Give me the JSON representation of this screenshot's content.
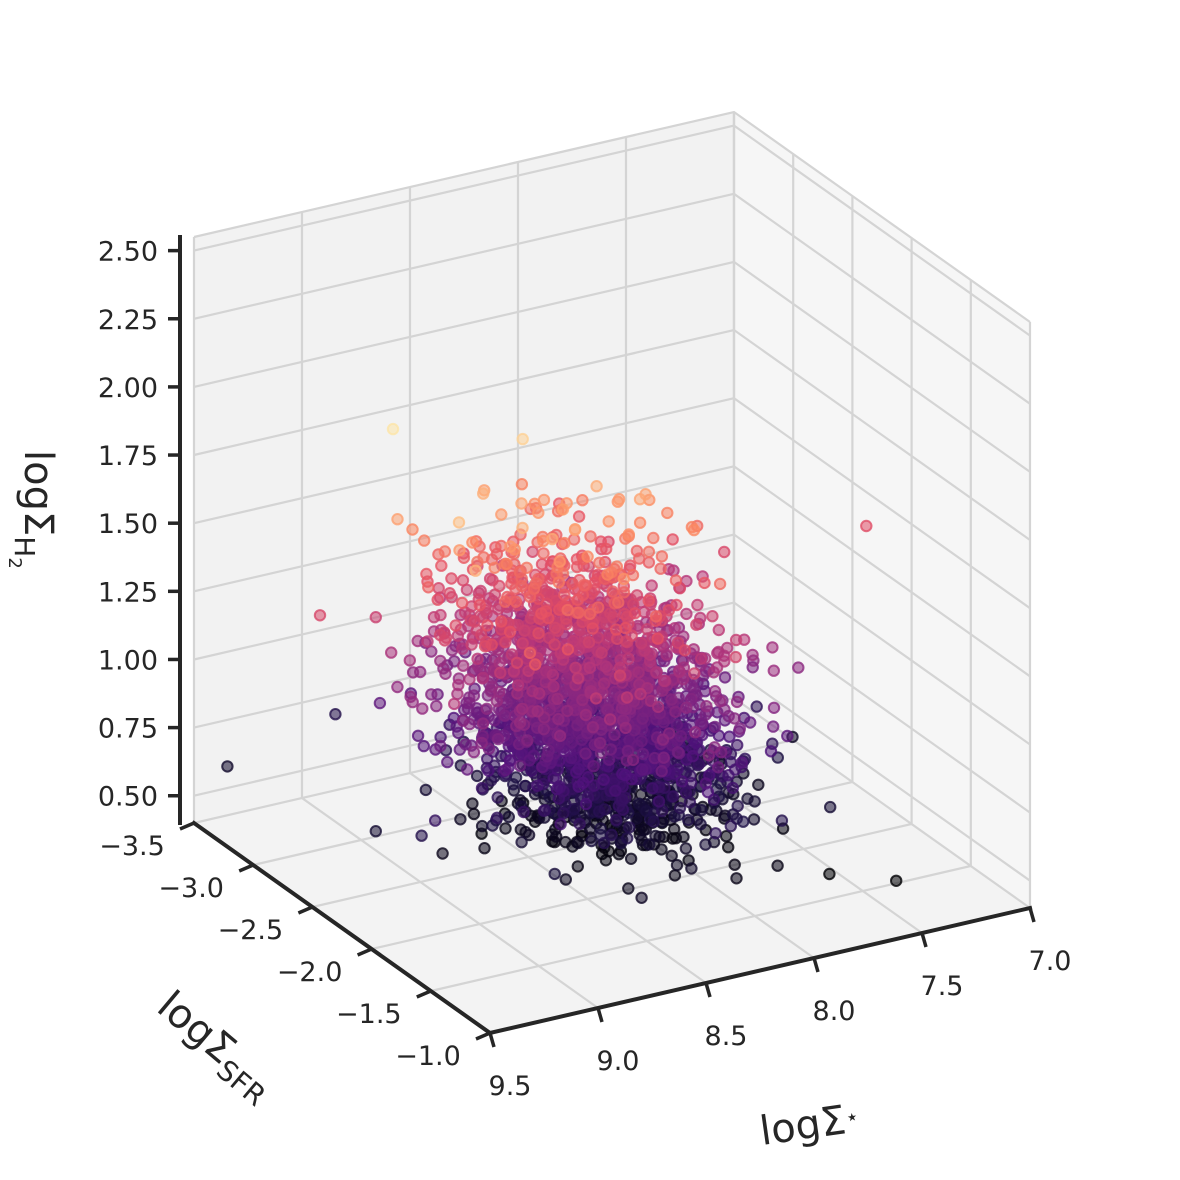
{
  "chart_data": {
    "type": "scatter",
    "projection": "3d",
    "axes": {
      "x": {
        "label": "logΣ",
        "label_sub": "⋆",
        "min": 7.0,
        "max": 9.5,
        "ticks": [
          "7.0",
          "7.5",
          "8.0",
          "8.5",
          "9.0",
          "9.5"
        ],
        "tick_values": [
          7.0,
          7.5,
          8.0,
          8.5,
          9.0,
          9.5
        ]
      },
      "y": {
        "label": "logΣ",
        "label_sub": "SFR",
        "min": -3.5,
        "max": -1.0,
        "ticks": [
          "−3.5",
          "−3.0",
          "−2.5",
          "−2.0",
          "−1.5",
          "−1.0"
        ],
        "tick_values": [
          -3.5,
          -3.0,
          -2.5,
          -2.0,
          -1.5,
          -1.0
        ]
      },
      "z": {
        "label": "logΣ",
        "label_sub": "H",
        "label_subsub": "2",
        "min": 0.4,
        "max": 2.55,
        "ticks": [
          "0.50",
          "0.75",
          "1.00",
          "1.25",
          "1.50",
          "1.75",
          "2.00",
          "2.25",
          "2.50"
        ],
        "tick_values": [
          0.5,
          0.75,
          1.0,
          1.25,
          1.5,
          1.75,
          2.0,
          2.25,
          2.5
        ]
      }
    },
    "grid": true,
    "colormap": "magma",
    "color_by": "z",
    "point_count": 2600,
    "cluster": {
      "x_mean": 8.35,
      "x_std": 0.28,
      "y_mean": -2.25,
      "y_std": 0.28,
      "z_mean": 0.92,
      "z_std": 0.32
    },
    "outliers": [
      {
        "x": 9.4,
        "y": -3.4,
        "z": 0.62
      },
      {
        "x": 8.9,
        "y": -3.4,
        "z": 0.72
      },
      {
        "x": 7.1,
        "y": -2.2,
        "z": 1.45
      },
      {
        "x": 7.6,
        "y": -1.6,
        "z": 0.45
      },
      {
        "x": 7.4,
        "y": -1.4,
        "z": 0.45
      }
    ]
  }
}
